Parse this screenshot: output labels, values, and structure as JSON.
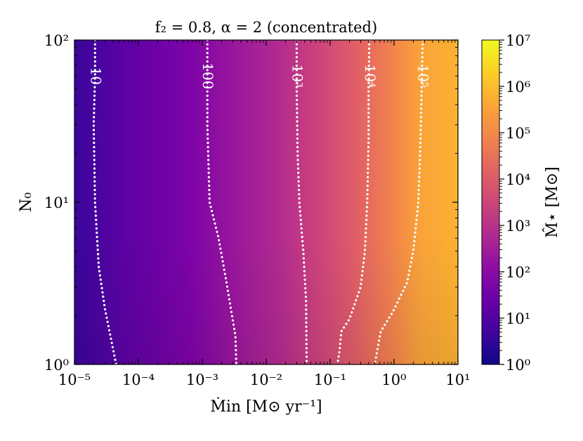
{
  "chart_data": {
    "type": "heatmap",
    "title": "f₂ = 0.8, α = 2 (concentrated)",
    "xlabel": "Ṁin [M⊙ yr⁻¹]",
    "ylabel": "N₀",
    "x_scale": "log",
    "y_scale": "log",
    "xlim": [
      1e-05,
      10
    ],
    "ylim": [
      1,
      100
    ],
    "x_ticks": [
      {
        "value": 1e-05,
        "label": "10⁻⁵"
      },
      {
        "value": 0.0001,
        "label": "10⁻⁴"
      },
      {
        "value": 0.001,
        "label": "10⁻³"
      },
      {
        "value": 0.01,
        "label": "10⁻²"
      },
      {
        "value": 0.1,
        "label": "10⁻¹"
      },
      {
        "value": 1,
        "label": "10⁰"
      },
      {
        "value": 10,
        "label": "10¹"
      }
    ],
    "y_ticks": [
      {
        "value": 1,
        "label": "10⁰"
      },
      {
        "value": 10,
        "label": "10¹"
      },
      {
        "value": 100,
        "label": "10²"
      }
    ],
    "colorbar": {
      "label": "M̂⋆ [M⊙]",
      "scale": "log",
      "range": [
        1,
        10000000
      ],
      "colormap": "plasma",
      "ticks": [
        {
          "value": 1,
          "label": "10⁰"
        },
        {
          "value": 10,
          "label": "10¹"
        },
        {
          "value": 100,
          "label": "10²"
        },
        {
          "value": 1000,
          "label": "10³"
        },
        {
          "value": 10000,
          "label": "10⁴"
        },
        {
          "value": 100000,
          "label": "10⁵"
        },
        {
          "value": 1000000,
          "label": "10⁶"
        },
        {
          "value": 10000000,
          "label": "10⁷"
        }
      ]
    },
    "grid": false,
    "contours": [
      {
        "level": 10,
        "label": "10",
        "style": "dotted",
        "color": "#ffffff",
        "points": [
          [
            2.1e-05,
            100
          ],
          [
            2.1e-05,
            60
          ],
          [
            2e-05,
            30
          ],
          [
            2.1e-05,
            10
          ],
          [
            2.4e-05,
            4
          ],
          [
            3e-05,
            2.2
          ],
          [
            4.5e-05,
            1
          ]
        ]
      },
      {
        "level": 100,
        "label": "100",
        "style": "dotted",
        "color": "#ffffff",
        "points": [
          [
            0.0012,
            100
          ],
          [
            0.0012,
            60
          ],
          [
            0.0012,
            30
          ],
          [
            0.0013,
            10
          ],
          [
            0.0018,
            6
          ],
          [
            0.0023,
            3.5
          ],
          [
            0.0033,
            1.5
          ],
          [
            0.0034,
            1
          ]
        ]
      },
      {
        "level": 1000,
        "label": "10³",
        "style": "dotted",
        "color": "#ffffff",
        "points": [
          [
            0.03,
            100
          ],
          [
            0.03,
            50
          ],
          [
            0.031,
            20
          ],
          [
            0.033,
            10
          ],
          [
            0.038,
            5
          ],
          [
            0.042,
            2.5
          ],
          [
            0.043,
            1
          ]
        ]
      },
      {
        "level": 10000,
        "label": "10⁴",
        "style": "dotted",
        "color": "#ffffff",
        "points": [
          [
            0.41,
            100
          ],
          [
            0.4,
            50
          ],
          [
            0.4,
            25
          ],
          [
            0.38,
            10
          ],
          [
            0.35,
            5
          ],
          [
            0.3,
            3
          ],
          [
            0.2,
            1.9
          ],
          [
            0.15,
            1.6
          ],
          [
            0.14,
            1.2
          ],
          [
            0.13,
            1
          ]
        ]
      },
      {
        "level": 100000,
        "label": "10⁵",
        "style": "dotted",
        "color": "#ffffff",
        "points": [
          [
            2.8,
            100
          ],
          [
            2.7,
            50
          ],
          [
            2.6,
            25
          ],
          [
            2.4,
            10
          ],
          [
            2.0,
            5
          ],
          [
            1.6,
            3.2
          ],
          [
            0.95,
            2.1
          ],
          [
            0.62,
            1.6
          ],
          [
            0.52,
            1.1
          ],
          [
            0.5,
            1
          ]
        ]
      }
    ]
  }
}
